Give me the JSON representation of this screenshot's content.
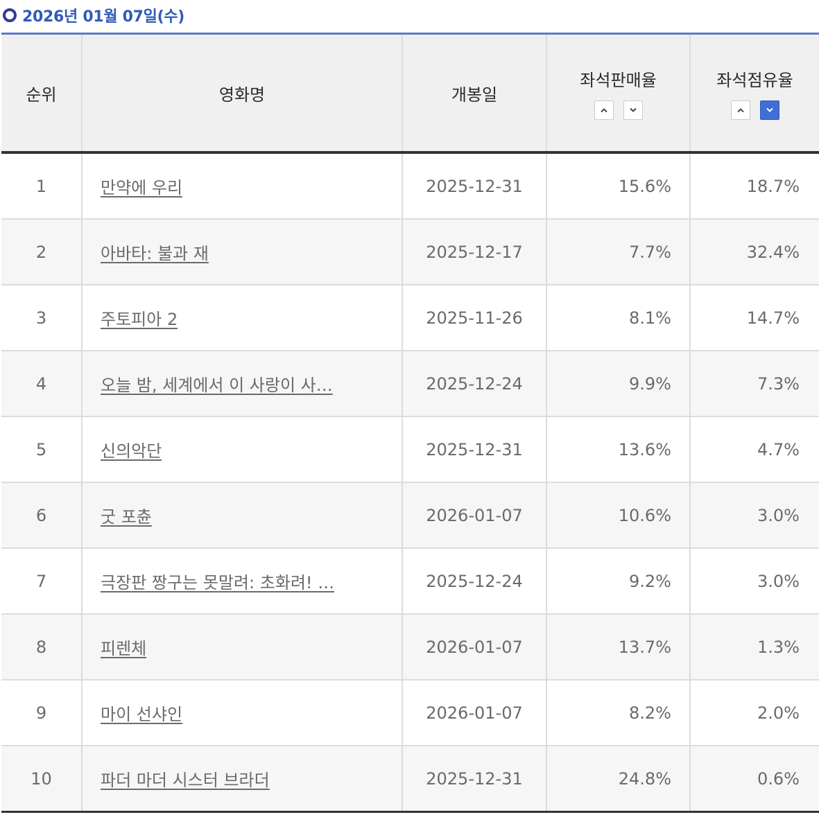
{
  "header": {
    "date": "2026년 01월 07일(수)"
  },
  "table": {
    "columns": {
      "rank": "순위",
      "title": "영화명",
      "release": "개봉일",
      "sales_rate": "좌석판매율",
      "share_rate": "좌석점유율"
    },
    "sort": {
      "sales_rate": {
        "asc_active": false,
        "desc_active": false
      },
      "share_rate": {
        "asc_active": false,
        "desc_active": true
      }
    },
    "rows": [
      {
        "rank": "1",
        "title": "만약에 우리",
        "release": "2025-12-31",
        "sales_rate": "15.6%",
        "share_rate": "18.7%"
      },
      {
        "rank": "2",
        "title": "아바타: 불과 재",
        "release": "2025-12-17",
        "sales_rate": "7.7%",
        "share_rate": "32.4%"
      },
      {
        "rank": "3",
        "title": "주토피아 2",
        "release": "2025-11-26",
        "sales_rate": "8.1%",
        "share_rate": "14.7%"
      },
      {
        "rank": "4",
        "title": "오늘 밤, 세계에서 이 사랑이 사…",
        "release": "2025-12-24",
        "sales_rate": "9.9%",
        "share_rate": "7.3%"
      },
      {
        "rank": "5",
        "title": "신의악단",
        "release": "2025-12-31",
        "sales_rate": "13.6%",
        "share_rate": "4.7%"
      },
      {
        "rank": "6",
        "title": "굿 포츈",
        "release": "2026-01-07",
        "sales_rate": "10.6%",
        "share_rate": "3.0%"
      },
      {
        "rank": "7",
        "title": "극장판 짱구는 못말려: 초화려! …",
        "release": "2025-12-24",
        "sales_rate": "9.2%",
        "share_rate": "3.0%"
      },
      {
        "rank": "8",
        "title": "피렌체",
        "release": "2026-01-07",
        "sales_rate": "13.7%",
        "share_rate": "1.3%"
      },
      {
        "rank": "9",
        "title": "마이 선샤인",
        "release": "2026-01-07",
        "sales_rate": "8.2%",
        "share_rate": "2.0%"
      },
      {
        "rank": "10",
        "title": "파더 마더 시스터 브라더",
        "release": "2025-12-31",
        "sales_rate": "24.8%",
        "share_rate": "0.6%"
      }
    ]
  }
}
